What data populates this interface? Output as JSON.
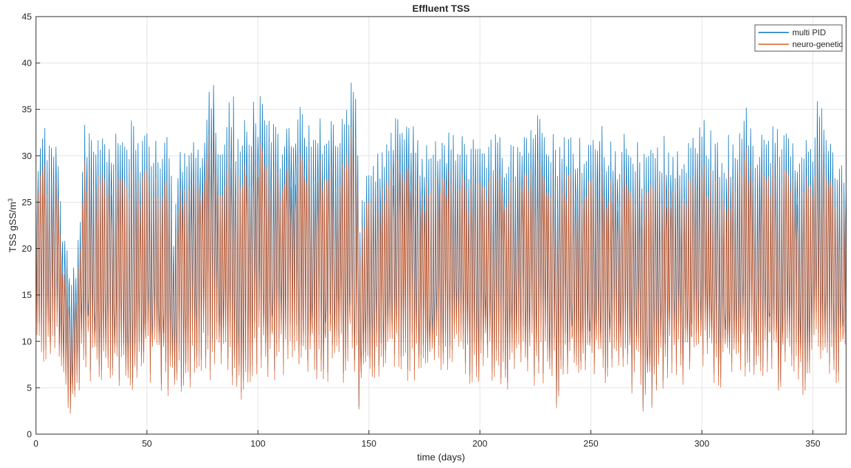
{
  "chart_data": {
    "type": "line",
    "title": "Effluent TSS",
    "xlabel": "time (days)",
    "ylabel": "TSS gSS/m",
    "ylabel_superscript": "3",
    "xlim": [
      0,
      365
    ],
    "ylim": [
      0,
      45
    ],
    "xticks": [
      "0",
      "50",
      "100",
      "150",
      "200",
      "250",
      "300",
      "350"
    ],
    "yticks": [
      "0",
      "5",
      "10",
      "15",
      "20",
      "25",
      "30",
      "35",
      "40",
      "45"
    ],
    "grid": true,
    "legend_position": "top-right",
    "series": [
      {
        "name": "multi PID",
        "color": "#0072BD",
        "x": [
          0,
          2,
          4,
          6,
          8,
          10,
          12,
          14,
          16,
          18,
          20,
          22,
          25,
          30,
          35,
          40,
          43,
          46,
          50,
          55,
          60,
          62,
          65,
          70,
          75,
          79.5,
          82,
          85,
          88.5,
          90,
          95,
          100,
          105,
          110,
          115,
          120,
          123,
          125,
          130,
          135,
          140,
          143.5,
          146,
          150,
          155,
          160,
          167,
          175,
          180,
          185,
          190,
          195,
          200,
          205,
          210,
          215,
          220,
          227,
          235,
          240,
          245,
          250,
          255,
          260,
          265,
          270,
          275,
          280,
          285,
          290,
          295,
          302,
          305,
          310,
          315,
          320,
          325,
          330,
          335,
          340,
          345,
          350,
          354,
          358,
          362,
          365
        ],
        "y_high": [
          29,
          31,
          34,
          32,
          31,
          33,
          24,
          22,
          17,
          19,
          24,
          34,
          32,
          34,
          33,
          33,
          35.5,
          32,
          34,
          31,
          34,
          24,
          31,
          32,
          33,
          41.8,
          34,
          35,
          39.6,
          33,
          35,
          37,
          35,
          33,
          35,
          36,
          34,
          36,
          33,
          35,
          36,
          40.8,
          25,
          30,
          31,
          33,
          37,
          31,
          33,
          34,
          33,
          32,
          34,
          33,
          32,
          32,
          33,
          35,
          32,
          33,
          33,
          32,
          34,
          32,
          33,
          32,
          31,
          33,
          32,
          32,
          33,
          35,
          32,
          32,
          33,
          36.5,
          32,
          33,
          34,
          33,
          33,
          32,
          40,
          33,
          30,
          28
        ],
        "y_low": [
          9,
          7,
          8,
          6,
          7,
          8,
          5,
          3,
          2.5,
          4,
          6,
          7,
          6,
          6,
          5,
          5,
          2,
          5,
          6,
          5,
          3,
          2,
          5,
          6,
          6,
          7,
          6,
          6,
          6,
          3,
          6,
          7,
          6,
          7,
          6,
          7,
          6,
          7,
          6,
          7,
          6,
          6,
          2,
          6,
          6,
          6,
          5,
          6,
          6,
          7,
          6,
          6,
          6,
          6,
          5,
          6,
          6,
          6,
          3,
          5,
          5,
          6,
          6,
          5,
          3,
          6,
          1,
          5,
          6,
          6,
          5,
          6,
          6,
          6,
          5,
          6,
          5,
          6,
          5,
          6,
          2,
          6,
          7,
          7,
          6,
          8
        ]
      },
      {
        "name": "neuro-genetic",
        "color": "#D95319",
        "x": [
          0,
          2,
          4,
          6,
          8,
          10,
          12,
          14,
          16,
          18,
          20,
          22,
          25,
          30,
          35,
          40,
          43,
          46,
          50,
          55,
          60,
          62,
          65,
          70,
          75,
          79.5,
          82,
          85,
          88.5,
          90,
          95,
          100,
          105,
          110,
          115,
          120,
          123,
          125,
          130,
          135,
          140,
          143.5,
          146,
          150,
          155,
          160,
          167,
          175,
          180,
          185,
          190,
          195,
          200,
          205,
          210,
          215,
          220,
          227,
          235,
          240,
          245,
          250,
          255,
          260,
          265,
          270,
          275,
          280,
          285,
          290,
          295,
          302,
          305,
          310,
          315,
          320,
          325,
          330,
          335,
          340,
          345,
          350,
          354,
          358,
          362,
          365
        ],
        "y_high": [
          27,
          28,
          30,
          28,
          28,
          29,
          20,
          18,
          14,
          16,
          21,
          30,
          28,
          30,
          29,
          29,
          30,
          28,
          30,
          27,
          29,
          21,
          27,
          28,
          29,
          36.5,
          29,
          30,
          34.5,
          29,
          30,
          32,
          30,
          29,
          30,
          31,
          30,
          31,
          29,
          30,
          31,
          36,
          22,
          27,
          27,
          29,
          32,
          27,
          29,
          30,
          29,
          28,
          30,
          29,
          28,
          28,
          29,
          30,
          28,
          29,
          29,
          28,
          29,
          28,
          29,
          28,
          27,
          29,
          28,
          28,
          29,
          30,
          28,
          28,
          29,
          32,
          28,
          29,
          30,
          29,
          29,
          28,
          35,
          29,
          27,
          25
        ],
        "y_low": [
          8,
          6,
          7,
          5,
          6,
          7,
          4,
          2.5,
          2,
          3.5,
          5,
          6,
          5,
          5,
          4.5,
          4.5,
          1.8,
          4.5,
          5,
          4.5,
          2.5,
          1.9,
          4.5,
          5,
          5,
          6,
          5,
          5,
          5,
          2.4,
          5,
          6,
          5,
          6,
          5,
          6,
          5,
          6,
          5,
          6,
          5,
          5,
          1.9,
          5,
          5,
          5,
          4,
          5,
          5,
          6,
          5,
          5,
          5,
          5,
          4.5,
          5,
          5,
          5,
          2.6,
          4.5,
          4.5,
          5,
          5,
          4.5,
          2.6,
          5,
          0.9,
          4.5,
          5,
          5,
          4.5,
          5,
          5,
          5,
          4.5,
          5,
          4.5,
          5,
          4.5,
          5,
          1.3,
          5,
          6,
          6,
          5,
          7
        ]
      }
    ]
  }
}
